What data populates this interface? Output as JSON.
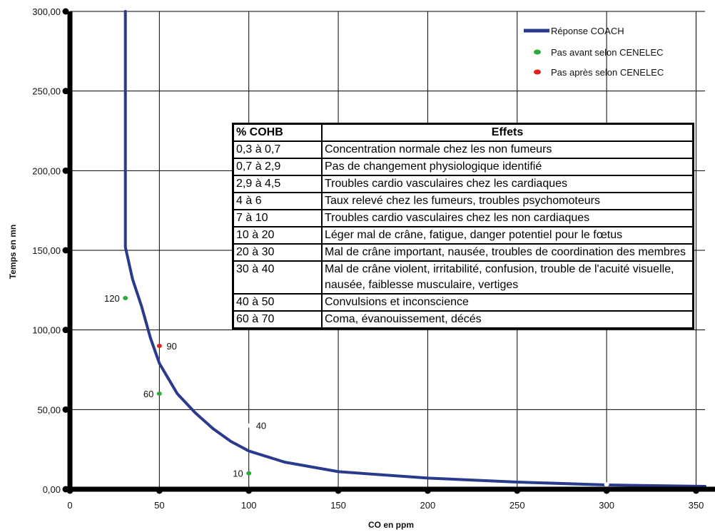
{
  "chart_data": {
    "type": "line",
    "xlabel": "CO en ppm",
    "ylabel": "Temps en mn",
    "xlim": [
      0,
      355
    ],
    "ylim": [
      0,
      300
    ],
    "x_ticks": [
      "0",
      "50",
      "100",
      "150",
      "200",
      "250",
      "300",
      "350"
    ],
    "y_ticks": [
      "0,00",
      "50,00",
      "100,00",
      "150,00",
      "200,00",
      "250,00",
      "300,00"
    ],
    "grid": true,
    "legend_position": "top-right",
    "colors": {
      "curve": "#2a3a8c",
      "avant": "#2eaa3c",
      "apres": "#e02020",
      "other": "#ffffff"
    },
    "series": [
      {
        "name": "Réponse COACH",
        "kind": "line",
        "points": [
          [
            31,
            300
          ],
          [
            31,
            152
          ],
          [
            35,
            132
          ],
          [
            40,
            115
          ],
          [
            45,
            95
          ],
          [
            50,
            79
          ],
          [
            60,
            60
          ],
          [
            70,
            48
          ],
          [
            80,
            38
          ],
          [
            90,
            30
          ],
          [
            100,
            24
          ],
          [
            120,
            17
          ],
          [
            150,
            11
          ],
          [
            200,
            7
          ],
          [
            250,
            4.5
          ],
          [
            300,
            2.7
          ],
          [
            355,
            1.8
          ]
        ]
      },
      {
        "name": "Pas avant selon CENELEC",
        "kind": "points",
        "points": [
          [
            31,
            120,
            "120"
          ],
          [
            50,
            60,
            "60"
          ],
          [
            100,
            10,
            "10"
          ]
        ]
      },
      {
        "name": "Pas après selon CENELEC",
        "kind": "points",
        "points": [
          [
            50,
            90,
            "90"
          ]
        ]
      },
      {
        "kind": "points",
        "points": [
          [
            100,
            40,
            "40"
          ],
          [
            300,
            3,
            ""
          ]
        ]
      }
    ]
  },
  "table": {
    "headers": [
      "% COHB",
      "Effets"
    ],
    "rows": [
      [
        "0,3 à 0,7",
        "Concentration normale chez les non fumeurs"
      ],
      [
        "0,7 à 2,9",
        "Pas de changement physiologique identifié"
      ],
      [
        "2,9 à 4,5",
        "Troubles cardio vasculaires chez les cardiaques"
      ],
      [
        "4 à 6",
        "Taux relevé chez les fumeurs, troubles psychomoteurs"
      ],
      [
        "7 à 10",
        "Troubles cardio vasculaires chez les non cardiaques"
      ],
      [
        "10 à 20",
        "Léger mal de crâne, fatigue, danger potentiel pour le fœtus"
      ],
      [
        "20 à 30",
        "Mal de crâne important, nausée, troubles de coordination des membres"
      ],
      [
        "30 à 40",
        "Mal de crâne violent, irritabilité, confusion, trouble de l'acuité visuelle, nausée, faiblesse musculaire, vertiges"
      ],
      [
        "40 à 50",
        "Convulsions et inconscience"
      ],
      [
        "60 à 70",
        "Coma, évanouissement, décés"
      ]
    ]
  }
}
